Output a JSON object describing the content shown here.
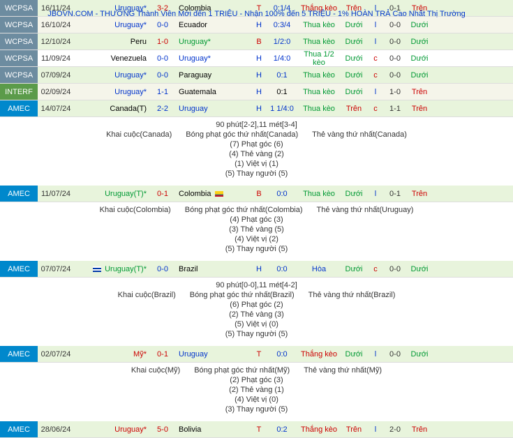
{
  "banner": "JBOVN.COM - THƯỞNG Thành Viên Mới đến 1 TRIỆU - Nhận 100% đến 5 TRIỆU - 1% HOÀN TRẢ Cao Nhất Thị Trường",
  "matches": [
    {
      "comp": "WCPSA",
      "compClass": "wcpsa",
      "date": "16/11/24",
      "bg": "bg1",
      "home": "Uruguay*",
      "homeClass": "blue-txt",
      "score": "3-2",
      "scoreClass": "red-txt",
      "away": "Colombia",
      "awayClass": "",
      "ht": "T",
      "htClass": "red-txt",
      "odds": "0:1/4",
      "oddsClass": "blue-txt",
      "keo": "Thắng kèo",
      "keoClass": "red-txt",
      "ou": "Trên",
      "ouClass": "red-txt",
      "ind": "l",
      "indClass": "blue-txt",
      "sc2": "0-1",
      "last": "Trên",
      "lastClass": "red-txt"
    },
    {
      "comp": "WCPSA",
      "compClass": "wcpsa",
      "date": "16/10/24",
      "bg": "bg2",
      "home": "Uruguay*",
      "homeClass": "blue-txt",
      "score": "0-0",
      "scoreClass": "blue-txt",
      "away": "Ecuador",
      "awayClass": "",
      "ht": "H",
      "htClass": "blue-txt",
      "odds": "0:3/4",
      "oddsClass": "blue-txt",
      "keo": "Thua kèo",
      "keoClass": "green-txt",
      "ou": "Dưới",
      "ouClass": "green-txt",
      "ind": "l",
      "indClass": "blue-txt",
      "sc2": "0-0",
      "last": "Dưới",
      "lastClass": "green-txt"
    },
    {
      "comp": "WCPSA",
      "compClass": "wcpsa",
      "date": "12/10/24",
      "bg": "bg1",
      "home": "Peru",
      "homeClass": "",
      "score": "1-0",
      "scoreClass": "red-txt",
      "away": "Uruguay*",
      "awayClass": "green-txt",
      "ht": "B",
      "htClass": "red-txt",
      "odds": "1/2:0",
      "oddsClass": "blue-txt",
      "keo": "Thua kèo",
      "keoClass": "green-txt",
      "ou": "Dưới",
      "ouClass": "green-txt",
      "ind": "l",
      "indClass": "blue-txt",
      "sc2": "0-0",
      "last": "Dưới",
      "lastClass": "green-txt"
    },
    {
      "comp": "WCPSA",
      "compClass": "wcpsa",
      "date": "11/09/24",
      "bg": "bg3",
      "home": "Venezuela",
      "homeClass": "",
      "score": "0-0",
      "scoreClass": "blue-txt",
      "away": "Uruguay*",
      "awayClass": "blue-txt",
      "ht": "H",
      "htClass": "blue-txt",
      "odds": "1/4:0",
      "oddsClass": "blue-txt",
      "keo": "Thua 1/2 kèo",
      "keoClass": "green-txt",
      "ou": "Dưới",
      "ouClass": "green-txt",
      "ind": "c",
      "indClass": "red-txt",
      "sc2": "0-0",
      "last": "Dưới",
      "lastClass": "green-txt"
    },
    {
      "comp": "WCPSA",
      "compClass": "wcpsa",
      "date": "07/09/24",
      "bg": "bg1",
      "home": "Uruguay*",
      "homeClass": "blue-txt",
      "score": "0-0",
      "scoreClass": "blue-txt",
      "away": "Paraguay",
      "awayClass": "",
      "ht": "H",
      "htClass": "blue-txt",
      "odds": "0:1",
      "oddsClass": "blue-txt",
      "keo": "Thua kèo",
      "keoClass": "green-txt",
      "ou": "Dưới",
      "ouClass": "green-txt",
      "ind": "c",
      "indClass": "red-txt",
      "sc2": "0-0",
      "last": "Dưới",
      "lastClass": "green-txt"
    },
    {
      "comp": "INTERF",
      "compClass": "interf",
      "date": "02/09/24",
      "bg": "bg2",
      "home": "Uruguay*",
      "homeClass": "blue-txt",
      "score": "1-1",
      "scoreClass": "blue-txt",
      "away": "Guatemala",
      "awayClass": "",
      "ht": "H",
      "htClass": "blue-txt",
      "odds": "0:1",
      "oddsClass": "",
      "keo": "Thua kèo",
      "keoClass": "green-txt",
      "ou": "Dưới",
      "ouClass": "green-txt",
      "ind": "l",
      "indClass": "blue-txt",
      "sc2": "1-0",
      "last": "Trên",
      "lastClass": "red-txt"
    },
    {
      "comp": "AMEC",
      "compClass": "amec",
      "date": "14/07/24",
      "bg": "bg1",
      "home": "Canada(T)",
      "homeClass": "",
      "score": "2-2",
      "scoreClass": "blue-txt",
      "away": "Uruguay",
      "awayClass": "blue-txt",
      "ht": "H",
      "htClass": "blue-txt",
      "odds": "1 1/4:0",
      "oddsClass": "blue-txt",
      "keo": "Thua kèo",
      "keoClass": "green-txt",
      "ou": "Trên",
      "ouClass": "red-txt",
      "ind": "c",
      "indClass": "red-txt",
      "sc2": "1-1",
      "last": "Trên",
      "lastClass": "red-txt"
    }
  ],
  "detail1": {
    "line1": "90 phút[2-2],11 mét[3-4]",
    "line2_l": "Khai cuộc(Canada)",
    "line2_c": "Bóng phạt góc thứ nhất(Canada)",
    "line2_r": "Thẻ vàng thứ nhất(Canada)",
    "line3": "(7) Phạt góc (6)",
    "line4": "(4) Thẻ vàng (2)",
    "line5": "(1) Việt vị (1)",
    "line6": "(5) Thay người (5)"
  },
  "matches2": [
    {
      "comp": "AMEC",
      "compClass": "amec",
      "date": "11/07/24",
      "bg": "bg1",
      "home": "Uruguay(T)*",
      "homeClass": "green-txt",
      "homeFlag": "",
      "score": "0-1",
      "scoreClass": "red-txt",
      "away": "Colombia",
      "awayClass": "",
      "awayFlag": "flag-co",
      "ht": "B",
      "htClass": "red-txt",
      "odds": "0:0",
      "oddsClass": "blue-txt",
      "keo": "Thua kèo",
      "keoClass": "green-txt",
      "ou": "Dưới",
      "ouClass": "green-txt",
      "ind": "l",
      "indClass": "blue-txt",
      "sc2": "0-1",
      "last": "Trên",
      "lastClass": "red-txt"
    }
  ],
  "detail2": {
    "line2_l": "Khai cuộc(Colombia)",
    "line2_c": "Bóng phạt góc thứ nhất(Colombia)",
    "line2_r": "Thẻ vàng thứ nhất(Uruguay)",
    "line3": "(4) Phạt góc (3)",
    "line4": "(3) Thẻ vàng (5)",
    "line5": "(4) Việt vị (2)",
    "line6": "(5) Thay người (5)"
  },
  "matches3": [
    {
      "comp": "AMEC",
      "compClass": "amec",
      "date": "07/07/24",
      "bg": "bg1",
      "home": "Uruguay(T)*",
      "homeClass": "green-txt",
      "homeFlag": "flag-uy",
      "score": "0-0",
      "scoreClass": "blue-txt",
      "away": "Brazil",
      "awayClass": "",
      "ht": "H",
      "htClass": "blue-txt",
      "odds": "0:0",
      "oddsClass": "blue-txt",
      "keo": "Hòa",
      "keoClass": "blue-txt",
      "ou": "Dưới",
      "ouClass": "green-txt",
      "ind": "c",
      "indClass": "red-txt",
      "sc2": "0-0",
      "last": "Dưới",
      "lastClass": "green-txt"
    }
  ],
  "detail3": {
    "line1": "90 phút[0-0],11 mét[4-2]",
    "line2_l": "Khai cuộc(Brazil)",
    "line2_c": "Bóng phạt góc thứ nhất(Brazil)",
    "line2_r": "Thẻ vàng thứ nhất(Brazil)",
    "line3": "(6) Phạt góc (2)",
    "line4": "(2) Thẻ vàng (3)",
    "line5": "(5) Việt vị (0)",
    "line6": "(5) Thay người (5)"
  },
  "matches4": [
    {
      "comp": "AMEC",
      "compClass": "amec",
      "date": "02/07/24",
      "bg": "bg1",
      "home": "Mỹ*",
      "homeClass": "red-txt",
      "score": "0-1",
      "scoreClass": "red-txt",
      "away": "Uruguay",
      "awayClass": "blue-txt",
      "ht": "T",
      "htClass": "red-txt",
      "odds": "0:0",
      "oddsClass": "blue-txt",
      "keo": "Thắng kèo",
      "keoClass": "red-txt",
      "ou": "Dưới",
      "ouClass": "green-txt",
      "ind": "l",
      "indClass": "blue-txt",
      "sc2": "0-0",
      "last": "Dưới",
      "lastClass": "green-txt"
    }
  ],
  "detail4": {
    "line2_l": "Khai cuộc(Mỹ)",
    "line2_c": "Bóng phạt góc thứ nhất(Mỹ)",
    "line2_r": "Thẻ vàng thứ nhất(Mỹ)",
    "line3": "(2) Phạt góc (3)",
    "line4": "(2) Thẻ vàng (1)",
    "line5": "(4) Việt vị (0)",
    "line6": "(3) Thay người (5)"
  },
  "matches5": [
    {
      "comp": "AMEC",
      "compClass": "amec",
      "date": "28/06/24",
      "bg": "bg1",
      "home": "Uruguay*",
      "homeClass": "red-txt",
      "score": "5-0",
      "scoreClass": "red-txt",
      "away": "Bolivia",
      "awayClass": "",
      "ht": "T",
      "htClass": "red-txt",
      "odds": "0:2",
      "oddsClass": "blue-txt",
      "keo": "Thắng kèo",
      "keoClass": "red-txt",
      "ou": "Trên",
      "ouClass": "red-txt",
      "ind": "l",
      "indClass": "blue-txt",
      "sc2": "2-0",
      "last": "Trên",
      "lastClass": "red-txt"
    }
  ]
}
